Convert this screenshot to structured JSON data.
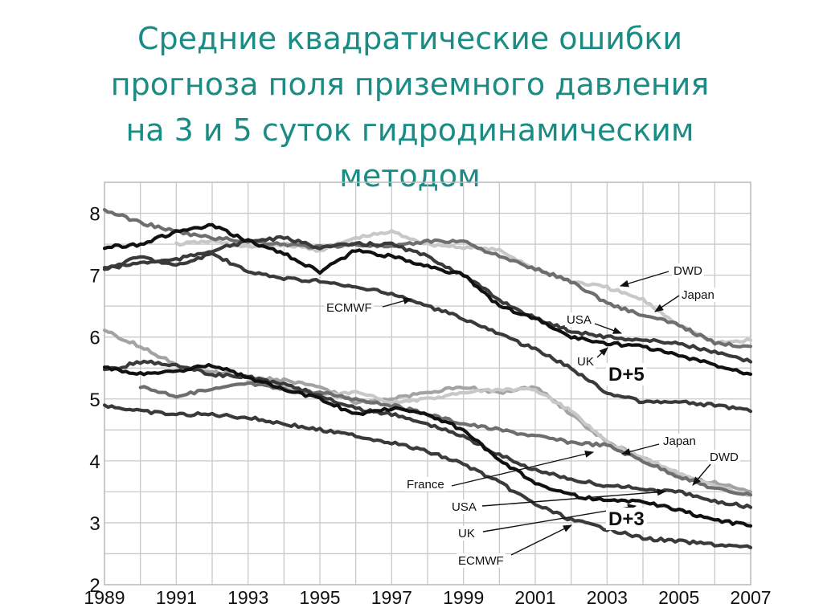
{
  "title": {
    "lines": [
      "Средние квадратические ошибки",
      "прогноза поля приземного давления",
      "на 3 и 5 суток гидродинамическим",
      "методом"
    ]
  },
  "colors": {
    "title": "#1a8c84",
    "black": "#111111",
    "dark": "#3a3a3a",
    "mid": "#6e6e6e",
    "light": "#a3a3a3",
    "lightest": "#c8c8c8",
    "grid": "#c9c9c9"
  },
  "chart_data": {
    "type": "line",
    "xlim": [
      1989,
      2007
    ],
    "ylim": [
      2,
      8.5
    ],
    "x_ticks": [
      "1989",
      "1991",
      "1993",
      "1995",
      "1997",
      "1999",
      "2001",
      "2003",
      "2005",
      "2007"
    ],
    "y_ticks": [
      "2",
      "3",
      "4",
      "5",
      "6",
      "7",
      "8"
    ],
    "grid": true,
    "groups": [
      {
        "label": "D+5",
        "series": [
          {
            "name": "DWD",
            "shade": "lightest",
            "x": [
              1991,
              1992,
              1993,
              1994,
              1995,
              1996,
              1997,
              1998,
              1999,
              2000,
              2001,
              2002,
              2003,
              2004,
              2005,
              2006,
              2007
            ],
            "y": [
              7.5,
              7.55,
              7.45,
              7.5,
              7.4,
              7.6,
              7.7,
              7.5,
              7.45,
              7.4,
              7.1,
              6.9,
              6.8,
              6.6,
              6.2,
              5.9,
              5.95
            ]
          },
          {
            "name": "Japan",
            "shade": "mid",
            "x": [
              1989,
              1990,
              1991,
              1992,
              1993,
              1994,
              1995,
              1996,
              1997,
              1998,
              1999,
              2000,
              2001,
              2002,
              2003,
              2004,
              2005,
              2006,
              2007
            ],
            "y": [
              8.05,
              7.85,
              7.7,
              7.6,
              7.55,
              7.5,
              7.45,
              7.5,
              7.45,
              7.55,
              7.55,
              7.3,
              7.1,
              6.9,
              6.55,
              6.35,
              6.2,
              5.9,
              5.85
            ]
          },
          {
            "name": "USA",
            "shade": "dark",
            "x": [
              1989,
              1990,
              1991,
              1992,
              1993,
              1994,
              1995,
              1996,
              1997,
              1998,
              1999,
              2000,
              2001,
              2002,
              2003,
              2004,
              2005,
              2006,
              2007
            ],
            "y": [
              7.1,
              7.2,
              7.25,
              7.4,
              7.55,
              7.6,
              7.45,
              7.5,
              7.5,
              7.3,
              7.0,
              6.6,
              6.3,
              6.1,
              6.0,
              5.95,
              5.9,
              5.75,
              5.6
            ]
          },
          {
            "name": "UK",
            "shade": "black",
            "x": [
              1989,
              1990,
              1991,
              1992,
              1993,
              1994,
              1995,
              1996,
              1997,
              1998,
              1999,
              2000,
              2001,
              2002,
              2003,
              2004,
              2005,
              2006,
              2007
            ],
            "y": [
              7.45,
              7.5,
              7.7,
              7.8,
              7.55,
              7.35,
              7.05,
              7.4,
              7.3,
              7.15,
              7.0,
              6.5,
              6.3,
              6.0,
              5.9,
              5.85,
              5.7,
              5.55,
              5.4
            ]
          },
          {
            "name": "ECMWF",
            "shade": "dark",
            "x": [
              1989,
              1990,
              1991,
              1992,
              1993,
              1994,
              1995,
              1996,
              1997,
              1998,
              1999,
              2000,
              2001,
              2002,
              2003,
              2004,
              2005,
              2006,
              2007
            ],
            "y": [
              7.1,
              7.3,
              7.15,
              7.35,
              7.05,
              6.95,
              6.9,
              6.8,
              6.7,
              6.5,
              6.3,
              6.05,
              5.8,
              5.5,
              5.1,
              4.95,
              4.95,
              4.9,
              4.8
            ]
          }
        ]
      },
      {
        "label": "D+3",
        "series": [
          {
            "name": "Japan",
            "shade": "light",
            "x": [
              1989,
              1990,
              1991,
              1992,
              1993,
              1994,
              1995,
              1996,
              1997,
              1998,
              1999,
              2000,
              2001,
              2002,
              2003,
              2004,
              2005,
              2006,
              2007
            ],
            "y": [
              6.1,
              5.85,
              5.55,
              5.45,
              5.35,
              5.3,
              5.2,
              4.95,
              5.0,
              5.1,
              5.2,
              5.1,
              5.2,
              4.75,
              4.3,
              4.05,
              3.75,
              3.65,
              3.5
            ]
          },
          {
            "name": "DWD",
            "shade": "lightest",
            "x": [
              1993,
              1994,
              1995,
              1996,
              1997,
              1998,
              1999,
              2000,
              2001,
              2002,
              2003,
              2004,
              2005,
              2006,
              2007
            ],
            "y": [
              5.3,
              5.2,
              5.05,
              5.1,
              4.95,
              5.0,
              5.1,
              5.15,
              5.15,
              4.8,
              4.3,
              4.05,
              3.8,
              3.6,
              3.45
            ]
          },
          {
            "name": "France",
            "shade": "mid",
            "x": [
              1990,
              1991,
              1992,
              1993,
              1994,
              1995,
              1996,
              1997,
              1998,
              1999,
              2000,
              2001,
              2002,
              2003,
              2004,
              2005,
              2006,
              2007
            ],
            "y": [
              5.2,
              5.05,
              5.15,
              5.25,
              5.15,
              5.1,
              5.0,
              4.9,
              4.75,
              4.6,
              4.5,
              4.4,
              4.3,
              4.25,
              4.0,
              3.75,
              3.55,
              3.45
            ]
          },
          {
            "name": "USA",
            "shade": "dark",
            "x": [
              1989,
              1990,
              1991,
              1992,
              1993,
              1994,
              1995,
              1996,
              1997,
              1998,
              1999,
              2000,
              2001,
              2002,
              2003,
              2004,
              2005,
              2006,
              2007
            ],
            "y": [
              5.45,
              5.6,
              5.55,
              5.4,
              5.35,
              5.25,
              5.05,
              4.85,
              4.75,
              4.6,
              4.4,
              4.1,
              3.85,
              3.7,
              3.6,
              3.55,
              3.5,
              3.35,
              3.25
            ]
          },
          {
            "name": "UK",
            "shade": "black",
            "x": [
              1989,
              1990,
              1991,
              1992,
              1993,
              1994,
              1995,
              1996,
              1997,
              1998,
              1999,
              2000,
              2001,
              2002,
              2003,
              2004,
              2005,
              2006,
              2007
            ],
            "y": [
              5.5,
              5.4,
              5.45,
              5.55,
              5.35,
              5.15,
              5.0,
              4.75,
              4.85,
              4.75,
              4.5,
              4.0,
              3.65,
              3.45,
              3.35,
              3.35,
              3.2,
              3.05,
              2.95
            ]
          },
          {
            "name": "ECMWF",
            "shade": "dark",
            "x": [
              1989,
              1990,
              1991,
              1992,
              1993,
              1994,
              1995,
              1996,
              1997,
              1998,
              1999,
              2000,
              2001,
              2002,
              2003,
              2004,
              2005,
              2006,
              2007
            ],
            "y": [
              4.9,
              4.8,
              4.75,
              4.75,
              4.7,
              4.6,
              4.5,
              4.4,
              4.3,
              4.15,
              3.95,
              3.65,
              3.3,
              3.05,
              2.9,
              2.75,
              2.7,
              2.65,
              2.6
            ]
          }
        ]
      }
    ],
    "annotations": [
      {
        "text": "DWD",
        "group": "D+5"
      },
      {
        "text": "Japan",
        "group": "D+5"
      },
      {
        "text": "ECMWF",
        "group": "D+5"
      },
      {
        "text": "USA",
        "group": "D+5"
      },
      {
        "text": "UK",
        "group": "D+5"
      },
      {
        "text": "Japan",
        "group": "D+3"
      },
      {
        "text": "DWD",
        "group": "D+3"
      },
      {
        "text": "France",
        "group": "D+3"
      },
      {
        "text": "USA",
        "group": "D+3"
      },
      {
        "text": "UK",
        "group": "D+3"
      },
      {
        "text": "ECMWF",
        "group": "D+3"
      }
    ],
    "group_labels": [
      "D+5",
      "D+3"
    ]
  }
}
